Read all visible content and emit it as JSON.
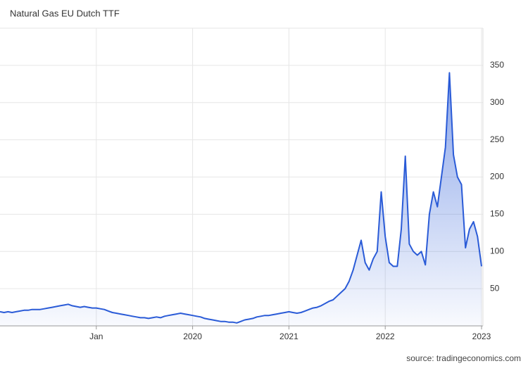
{
  "chart_data": {
    "type": "area",
    "title": "Natural Gas EU Dutch TTF",
    "source": "source: tradingeconomics.com",
    "color": "#2a5bd7",
    "grid": true,
    "xlim": [
      0,
      120
    ],
    "xticks": [
      {
        "value": 24,
        "label": "Jan"
      },
      {
        "value": 48,
        "label": "2020"
      },
      {
        "value": 72,
        "label": "2021"
      },
      {
        "value": 96,
        "label": "2022"
      },
      {
        "value": 120,
        "label": "2023"
      }
    ],
    "ylim": [
      0,
      400
    ],
    "yticks": [
      50,
      100,
      150,
      200,
      250,
      300,
      350
    ],
    "values": [
      19,
      18,
      19,
      18,
      19,
      20,
      21,
      21,
      22,
      22,
      22,
      23,
      24,
      25,
      26,
      27,
      28,
      29,
      27,
      26,
      25,
      26,
      25,
      24,
      24,
      23,
      22,
      20,
      18,
      17,
      16,
      15,
      14,
      13,
      12,
      11,
      11,
      10,
      11,
      12,
      11,
      13,
      14,
      15,
      16,
      17,
      16,
      15,
      14,
      13,
      12,
      10,
      9,
      8,
      7,
      6,
      6,
      5,
      5,
      4,
      6,
      8,
      9,
      10,
      12,
      13,
      14,
      14,
      15,
      16,
      17,
      18,
      19,
      18,
      17,
      18,
      20,
      22,
      24,
      25,
      27,
      30,
      33,
      35,
      40,
      45,
      50,
      60,
      75,
      95,
      115,
      85,
      75,
      90,
      100,
      180,
      120,
      85,
      80,
      80,
      130,
      228,
      110,
      100,
      95,
      100,
      82,
      150,
      180,
      160,
      200,
      240,
      340,
      230,
      200,
      190,
      105,
      130,
      140,
      120,
      80
    ]
  }
}
